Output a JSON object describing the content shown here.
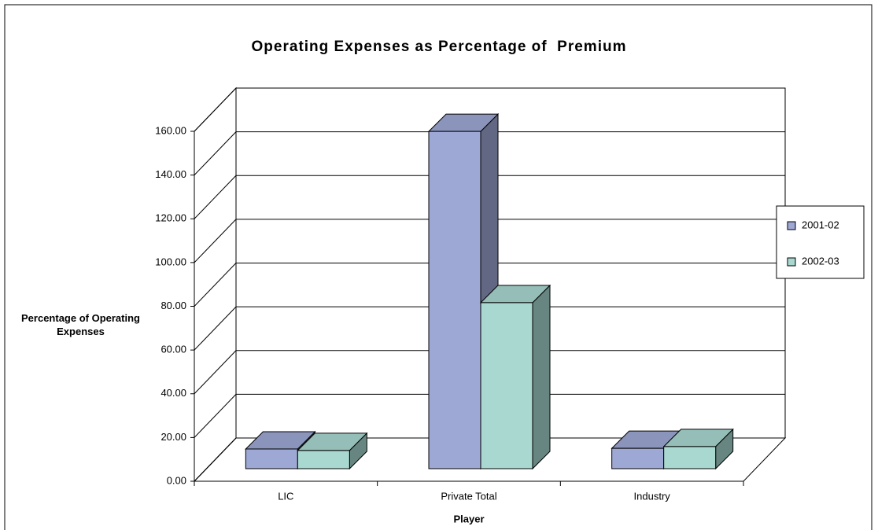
{
  "chart_data": {
    "type": "bar3d",
    "title": "Operating Expenses as Percentage of  Premium",
    "x_label": "Player",
    "y_label": "Percentage of Operating Expenses",
    "categories": [
      "LIC",
      "Private Total",
      "Industry"
    ],
    "series": [
      {
        "name": "2001-02",
        "color": "#9ea8d4",
        "values": [
          9.0,
          154.2,
          9.3
        ]
      },
      {
        "name": "2002-03",
        "color": "#a8d8d0",
        "values": [
          8.3,
          75.9,
          10.1
        ]
      }
    ],
    "ylim": [
      0,
      160
    ],
    "yticks": [
      {
        "value": 0,
        "label": "0.00"
      },
      {
        "value": 20,
        "label": "20.00"
      },
      {
        "value": 40,
        "label": "40.00"
      },
      {
        "value": 60,
        "label": "60.00"
      },
      {
        "value": 80,
        "label": "80.00"
      },
      {
        "value": 100,
        "label": "100.00"
      },
      {
        "value": 120,
        "label": "120.00"
      },
      {
        "value": 140,
        "label": "140.00"
      },
      {
        "value": 160,
        "label": "160.00"
      }
    ],
    "grid": true,
    "legend": "right"
  }
}
